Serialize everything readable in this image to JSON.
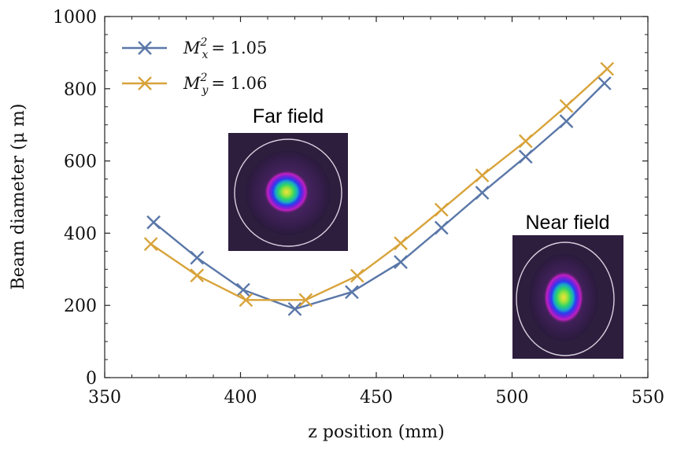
{
  "chart_data": {
    "type": "line",
    "title": "",
    "xlabel": "z position (mm)",
    "ylabel": "Beam diameter (μ m)",
    "xlim": [
      350,
      550
    ],
    "ylim": [
      0,
      1000
    ],
    "xticks": [
      350,
      400,
      450,
      500,
      550
    ],
    "yticks": [
      0,
      200,
      400,
      600,
      800,
      1000
    ],
    "grid": false,
    "legend_position": "top-left",
    "series": [
      {
        "name": "M_x^2 = 1.05",
        "legend_base": "M",
        "legend_sub": "x",
        "legend_sup": "2",
        "legend_value": "= 1.05",
        "color": "#5a77a8",
        "marker": "x",
        "x": [
          368,
          384,
          401,
          420,
          441,
          459,
          474,
          489,
          505,
          520,
          534
        ],
        "y": [
          430,
          332,
          243,
          190,
          237,
          320,
          415,
          512,
          612,
          710,
          815
        ]
      },
      {
        "name": "M_y^2 = 1.06",
        "legend_base": "M",
        "legend_sub": "y",
        "legend_sup": "2",
        "legend_value": "= 1.06",
        "color": "#d8a33a",
        "marker": "x",
        "x": [
          367,
          384,
          402,
          424,
          443,
          459,
          474,
          489,
          505,
          520,
          535
        ],
        "y": [
          370,
          283,
          215,
          215,
          282,
          372,
          465,
          560,
          655,
          752,
          855
        ]
      }
    ],
    "annotations": [
      {
        "name": "far-field-inset",
        "title": "Far field",
        "anchor": "center",
        "spot_shape": "round"
      },
      {
        "name": "near-field-inset",
        "title": "Near field",
        "anchor": "lower-right",
        "spot_shape": "tall-oval"
      }
    ]
  }
}
